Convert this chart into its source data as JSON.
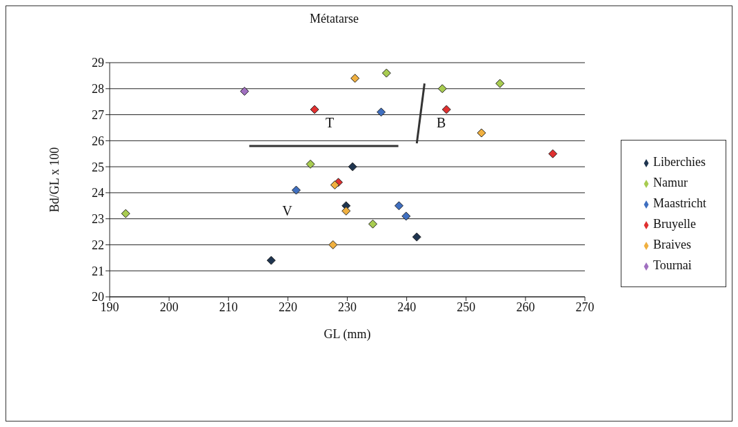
{
  "chart_data": {
    "type": "scatter",
    "title": "Métatarse",
    "xlabel": "GL (mm)",
    "ylabel": "Bd/GL x 100",
    "xlim": [
      190,
      270
    ],
    "xticks": [
      190,
      200,
      210,
      220,
      230,
      240,
      250,
      260,
      270
    ],
    "ylim": [
      20,
      29
    ],
    "yticks": [
      20,
      21,
      22,
      23,
      24,
      25,
      26,
      27,
      28,
      29
    ],
    "grid": "y",
    "legend": "right",
    "marker": "diamond",
    "series": [
      {
        "name": "Liberchies",
        "color": "#1f3550",
        "x": [
          217.2,
          229.8,
          230.9,
          241.7
        ],
        "values": [
          21.4,
          23.5,
          25.0,
          22.3
        ]
      },
      {
        "name": "Namur",
        "color": "#a8cc50",
        "x": [
          192.7,
          223.8,
          236.6,
          246.0,
          255.7,
          234.3
        ],
        "values": [
          23.2,
          25.1,
          28.6,
          28.0,
          28.2,
          22.8
        ]
      },
      {
        "name": "Maastricht",
        "color": "#3f6fc0",
        "x": [
          221.4,
          235.7,
          238.7,
          239.9
        ],
        "values": [
          24.1,
          27.1,
          23.5,
          23.1
        ]
      },
      {
        "name": "Bruyelle",
        "color": "#e03030",
        "x": [
          224.5,
          228.5,
          246.7,
          264.6
        ],
        "values": [
          27.2,
          24.4,
          27.2,
          25.5
        ]
      },
      {
        "name": "Braives",
        "color": "#f0b040",
        "x": [
          227.9,
          229.8,
          227.6,
          231.3,
          252.6
        ],
        "values": [
          24.3,
          23.3,
          22.0,
          28.4,
          26.3
        ]
      },
      {
        "name": "Tournai",
        "color": "#a070c0",
        "x": [
          212.7
        ],
        "values": [
          27.9
        ]
      },
      {
        "type": "line",
        "marker": "none",
        "color": "#333333",
        "x": [
          213.5,
          238.6
        ],
        "values": [
          25.8,
          25.8
        ]
      },
      {
        "type": "line",
        "marker": "none",
        "color": "#333333",
        "x": [
          243.0,
          241.7
        ],
        "values": [
          28.2,
          25.9
        ]
      }
    ],
    "annotations": [
      "T",
      "V",
      "B"
    ]
  }
}
